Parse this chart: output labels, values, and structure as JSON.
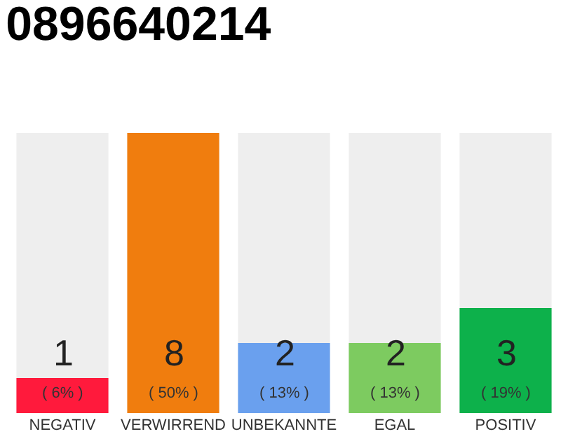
{
  "chart_data": {
    "type": "bar",
    "title": "0896640214",
    "ylim": [
      0,
      8
    ],
    "tick_labels": "x",
    "categories": [
      "NEGATIV",
      "VERWIRREND",
      "UNBEKANNTE",
      "EGAL",
      "POSITIV"
    ],
    "values": [
      1,
      8,
      2,
      2,
      3
    ],
    "colors": [
      "#ff1a3c",
      "#f07d0e",
      "#6aa0ee",
      "#7dcb60",
      "#0db14b"
    ],
    "value_labels": [
      "1\n( 6% )",
      "8\n( 50% )",
      "2\n( 13% )",
      "2\n( 13% )",
      "3\n( 19% )"
    ],
    "grid": false,
    "legend": false
  }
}
